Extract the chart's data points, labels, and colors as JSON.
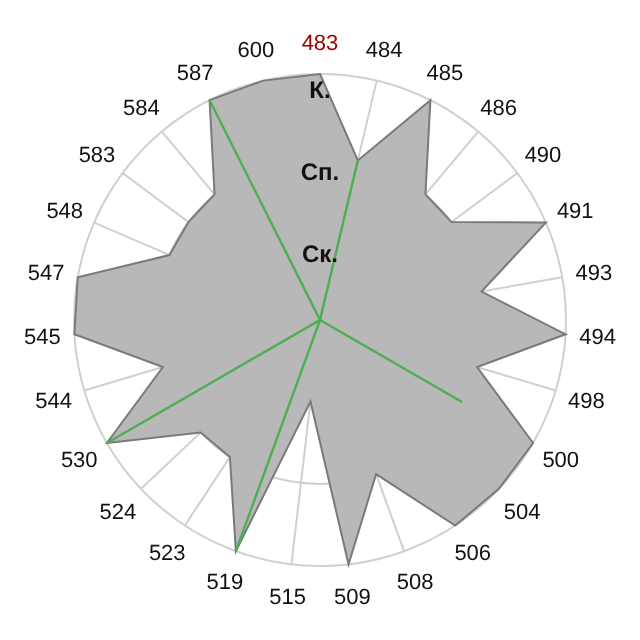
{
  "chart_data": {
    "type": "radar",
    "relative": false,
    "categories": [
      "483",
      "484",
      "485",
      "486",
      "490",
      "491",
      "493",
      "494",
      "498",
      "500",
      "504",
      "506",
      "508",
      "509",
      "515",
      "519",
      "523",
      "524",
      "530",
      "544",
      "545",
      "547",
      "548",
      "583",
      "584",
      "587",
      "600"
    ],
    "series": [
      {
        "color": "#b8b8b8",
        "values": [
          3,
          2,
          3,
          2,
          2,
          3,
          2,
          3,
          2,
          3,
          3,
          3,
          2,
          3,
          1,
          3,
          2,
          2,
          3,
          2,
          3,
          3,
          2,
          2,
          2,
          3,
          3
        ]
      },
      {
        "color": "#4caf50",
        "values": [
          0,
          2,
          0,
          0,
          0,
          0,
          0,
          0,
          0,
          2,
          0,
          0,
          0,
          0,
          0,
          3,
          0,
          0,
          3,
          0,
          0,
          0,
          0,
          0,
          0,
          3,
          0
        ]
      }
    ],
    "ylim": [
      0,
      3
    ],
    "yticks": [
      {
        "value": 1,
        "label": "Ск."
      },
      {
        "value": 2,
        "label": "Сп."
      },
      {
        "value": 3,
        "label": "К."
      }
    ],
    "grid": true
  }
}
